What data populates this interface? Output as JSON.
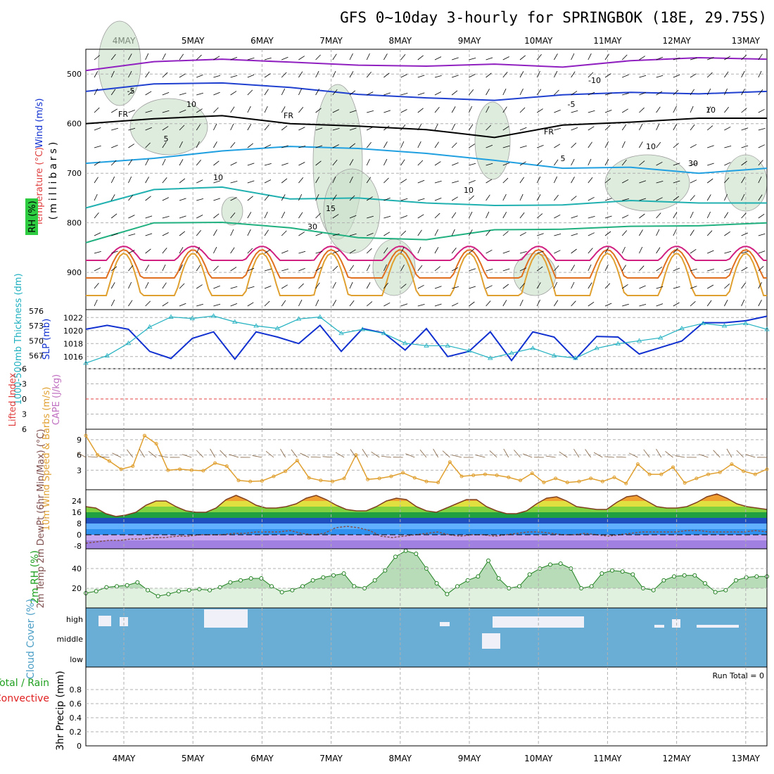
{
  "title": "GFS 0~10day 3-hourly for SPRINGBOK (18E, 29.75S)",
  "date_labels": [
    "4MAY",
    "5MAY",
    "6MAY",
    "7MAY",
    "8MAY",
    "9MAY",
    "10MAY",
    "11MAY",
    "12MAY",
    "13MAY"
  ],
  "colors": {
    "temp_warm": "#e08020",
    "temp_cold": "#2040c0",
    "rh_fill": "#c8e0c8",
    "slp": "#1030d0",
    "thick": "#20b0c0",
    "wind10": "#e0a030",
    "cloud": "#6aaed6",
    "rain": "#20a020",
    "conv": "#e02020"
  },
  "chart_data": [
    {
      "type": "contour",
      "panel": "upper-air",
      "ylabel_wind": "Wind (m/s)",
      "ylabel_temp": "Temperature (°C)",
      "ylabel_rh": "RH (%)",
      "ylabel_pres": "(millibars)",
      "ylim": [
        975,
        450
      ],
      "yticks": [
        "500",
        "600",
        "700",
        "800",
        "900"
      ],
      "contour_labels": [
        "-10",
        "-5",
        "-5",
        "FR",
        "FR",
        "FR",
        "5",
        "5",
        "10",
        "10",
        "15",
        "10",
        "10",
        "30",
        "30",
        "10"
      ],
      "isotherms": [
        {
          "label": "-10",
          "points": [
            [
              0,
              493
            ],
            [
              1,
              475
            ],
            [
              2,
              470
            ],
            [
              3,
              476
            ],
            [
              4,
              482
            ],
            [
              5,
              484
            ],
            [
              6,
              480
            ],
            [
              7,
              486
            ],
            [
              8,
              473
            ],
            [
              9,
              467
            ],
            [
              10,
              470
            ]
          ]
        },
        {
          "label": "-5",
          "points": [
            [
              0,
              535
            ],
            [
              1,
              520
            ],
            [
              2,
              518
            ],
            [
              3,
              527
            ],
            [
              4,
              541
            ],
            [
              5,
              548
            ],
            [
              6,
              553
            ],
            [
              7,
              542
            ],
            [
              8,
              537
            ],
            [
              9,
              540
            ],
            [
              10,
              535
            ]
          ]
        },
        {
          "label": "FR",
          "points": [
            [
              0,
              600
            ],
            [
              1,
              590
            ],
            [
              2,
              584
            ],
            [
              3,
              600
            ],
            [
              4,
              605
            ],
            [
              5,
              612
            ],
            [
              6,
              628
            ],
            [
              7,
              603
            ],
            [
              8,
              597
            ],
            [
              9,
              589
            ],
            [
              10,
              589
            ]
          ]
        },
        {
          "label": "5",
          "points": [
            [
              0,
              680
            ],
            [
              1,
              670
            ],
            [
              2,
              655
            ],
            [
              3,
              646
            ],
            [
              4,
              650
            ],
            [
              5,
              660
            ],
            [
              6,
              674
            ],
            [
              7,
              690
            ],
            [
              8,
              688
            ],
            [
              9,
              700
            ],
            [
              10,
              690
            ]
          ]
        },
        {
          "label": "10",
          "points": [
            [
              0,
              770
            ],
            [
              1,
              733
            ],
            [
              2,
              728
            ],
            [
              3,
              752
            ],
            [
              4,
              750
            ],
            [
              5,
              760
            ],
            [
              6,
              765
            ],
            [
              7,
              764
            ],
            [
              8,
              755
            ],
            [
              9,
              760
            ],
            [
              10,
              760
            ]
          ]
        },
        {
          "label": "15",
          "points": [
            [
              0,
              840
            ],
            [
              1,
              800
            ],
            [
              2,
              799
            ],
            [
              3,
              810
            ],
            [
              4,
              830
            ],
            [
              5,
              834
            ],
            [
              6,
              814
            ],
            [
              7,
              813
            ],
            [
              8,
              807
            ],
            [
              9,
              806
            ],
            [
              10,
              800
            ]
          ]
        }
      ]
    },
    {
      "type": "line",
      "panel": "thickness-slp",
      "ylabel_left": "1000-500mb Thickness (dm)",
      "ylabel_right": "SLP (mb)",
      "yticks_left": [
        "567",
        "570",
        "573",
        "576"
      ],
      "yticks_right": [
        "1016",
        "1018",
        "1020",
        "1022"
      ],
      "series": [
        {
          "name": "SLP",
          "values": [
            1020.2,
            1020.8,
            1020.2,
            1016.8,
            1015.7,
            1018.8,
            1019.8,
            1015.6,
            1019.8,
            1019.0,
            1018.0,
            1020.8,
            1016.8,
            1020.3,
            1019.6,
            1017.0,
            1020.3,
            1016.0,
            1016.8,
            1019.8,
            1015.4,
            1019.8,
            1019.0,
            1015.6,
            1019.1,
            1019.0,
            1016.4,
            1017.4,
            1018.4,
            1021.2,
            1021.2,
            1021.5,
            1022.2
          ]
        },
        {
          "name": "Thickness",
          "values": [
            565.5,
            567.0,
            569.5,
            572.8,
            574.8,
            574.5,
            575.0,
            573.8,
            573.0,
            572.5,
            574.4,
            574.8,
            571.5,
            572.3,
            571.5,
            569.5,
            569.0,
            569.0,
            568.0,
            566.5,
            567.5,
            568.5,
            567.0,
            566.5,
            568.5,
            569.4,
            570.0,
            570.6,
            572.5,
            573.5,
            573.0,
            573.5,
            572.3
          ]
        }
      ]
    },
    {
      "type": "line",
      "panel": "cape-li",
      "ylabel_left": "Lifted Index",
      "ylabel_right": "CAPE (J/kg)",
      "yticks": [
        "6",
        "3",
        "0",
        "-3",
        "-6"
      ]
    },
    {
      "type": "line",
      "panel": "wind10m",
      "ylabel": "10m Wind Speed & Barbs (m/s)",
      "yticks": [
        "3",
        "6",
        "9"
      ],
      "values": [
        9.8,
        6.0,
        4.8,
        3.2,
        3.8,
        9.8,
        8.2,
        3.0,
        3.2,
        3.0,
        2.9,
        4.4,
        3.8,
        1.0,
        0.8,
        0.9,
        1.8,
        2.8,
        4.9,
        1.5,
        1.0,
        0.8,
        1.4,
        6.0,
        1.2,
        1.4,
        1.8,
        2.5,
        1.5,
        0.8,
        0.6,
        4.6,
        1.8,
        2.0,
        2.2,
        2.0,
        1.6,
        1.0,
        2.4,
        0.6,
        1.4,
        0.6,
        0.8,
        1.4,
        0.8,
        1.6,
        0.4,
        4.2,
        2.2,
        2.2,
        3.6,
        0.5,
        1.4,
        2.2,
        2.6,
        4.2,
        2.8,
        2.2,
        3.2
      ]
    },
    {
      "type": "area",
      "panel": "temperature",
      "ylabel": "2m Temp 2m DewPt (6hr Min/Max) (°C)",
      "yticks": [
        "-8",
        "0",
        "8",
        "16",
        "24"
      ],
      "ylim": [
        -10,
        32
      ],
      "series": [
        {
          "name": "2m Temp",
          "values": [
            20,
            19,
            15,
            13,
            14,
            16,
            21,
            24,
            24,
            20,
            17,
            16,
            16,
            19,
            25,
            28,
            25,
            21,
            19,
            19,
            20,
            22,
            26,
            28,
            25,
            21,
            18,
            17,
            17,
            20,
            24,
            26,
            25,
            20,
            17,
            16,
            19,
            22,
            25,
            25,
            20,
            17,
            15,
            15,
            17,
            22,
            26,
            27,
            24,
            20,
            19,
            18,
            18,
            23,
            27,
            28,
            24,
            20,
            19,
            19,
            20,
            23,
            27,
            29,
            26,
            22,
            20,
            19,
            18
          ]
        },
        {
          "name": "2m DewPt",
          "values": [
            -6,
            -5,
            -4,
            -4,
            -3,
            -3,
            -2,
            -2,
            -1,
            -1,
            0,
            0,
            0,
            1,
            1,
            2,
            2,
            2,
            3,
            1,
            0,
            1,
            5,
            6,
            5,
            3,
            -1,
            -2,
            -1,
            0,
            1,
            2,
            0,
            -1,
            0,
            0,
            -1,
            0,
            1,
            2,
            2,
            1,
            0,
            0,
            1,
            0,
            -1,
            0,
            1,
            2,
            2,
            2,
            2,
            3,
            3,
            2,
            2,
            2,
            2,
            3,
            2
          ]
        }
      ]
    },
    {
      "type": "area",
      "panel": "rh2m",
      "ylabel": "2m RH (%)",
      "yticks": [
        "20",
        "40"
      ],
      "ylim": [
        0,
        60
      ],
      "values": [
        15,
        17,
        21,
        22,
        23,
        26,
        18,
        12,
        14,
        17,
        18,
        19,
        18,
        21,
        26,
        28,
        30,
        30,
        22,
        16,
        18,
        22,
        28,
        31,
        33,
        35,
        22,
        20,
        28,
        38,
        52,
        58,
        55,
        40,
        25,
        14,
        22,
        28,
        32,
        48,
        30,
        20,
        22,
        34,
        40,
        44,
        45,
        40,
        20,
        22,
        35,
        38,
        37,
        34,
        20,
        18,
        28,
        32,
        33,
        33,
        25,
        16,
        18,
        28,
        31,
        32,
        32
      ]
    },
    {
      "type": "bar",
      "panel": "cloud",
      "ylabel": "Cloud Cover (%)",
      "levels": [
        "high",
        "middle",
        "low"
      ]
    },
    {
      "type": "bar",
      "panel": "precip",
      "ylabel": "3hr Precip (mm)",
      "legend_left_1": "Total / Rain",
      "legend_left_2": "Convective",
      "yticks": [
        "0",
        "0.2",
        "0.4",
        "0.6",
        "0.8"
      ],
      "ylim": [
        0,
        1
      ],
      "run_total": "Run Total = 0"
    }
  ]
}
